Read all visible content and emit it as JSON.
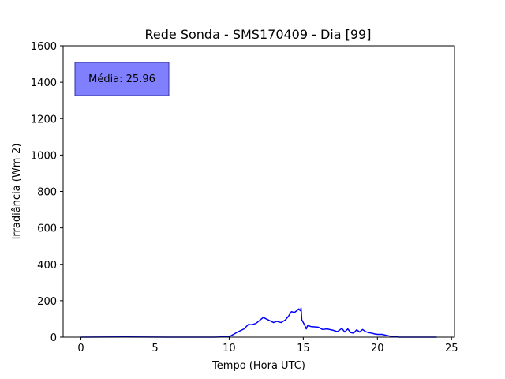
{
  "chart_data": {
    "type": "line",
    "title": "Rede Sonda - SMS170409 - Dia [99]",
    "xlabel": "Tempo (Hora UTC)",
    "ylabel": "Irradiância (Wm-2)",
    "xlim": [
      -1.2,
      25.2
    ],
    "ylim": [
      0,
      1600
    ],
    "x_ticks": [
      0,
      5,
      10,
      15,
      20,
      25
    ],
    "y_ticks": [
      0,
      200,
      400,
      600,
      800,
      1000,
      1200,
      1400,
      1600
    ],
    "grid": false,
    "annotation": {
      "text": "Média: 25.96",
      "background_color": "#8080ff",
      "border_color": "#333399"
    },
    "series": [
      {
        "color": "#0000ff",
        "x": [
          0,
          3,
          6,
          9,
          10,
          10.5,
          11,
          11.3,
          11.5,
          11.8,
          12.0,
          12.3,
          12.5,
          12.8,
          13.0,
          13.2,
          13.5,
          13.8,
          14.0,
          14.2,
          14.4,
          14.6,
          14.7,
          14.8,
          14.85,
          14.9,
          15.0,
          15.1,
          15.2,
          15.3,
          15.5,
          16.0,
          16.3,
          16.6,
          17.0,
          17.3,
          17.6,
          17.8,
          18.0,
          18.2,
          18.4,
          18.6,
          18.8,
          19.0,
          19.2,
          19.4,
          19.6,
          19.8,
          20.0,
          20.3,
          20.6,
          21.0,
          21.5,
          22,
          24
        ],
        "y": [
          0,
          1,
          0,
          0,
          2,
          25,
          45,
          70,
          68,
          75,
          88,
          108,
          100,
          88,
          80,
          87,
          80,
          95,
          115,
          140,
          135,
          148,
          155,
          145,
          160,
          95,
          80,
          65,
          45,
          65,
          58,
          55,
          42,
          45,
          38,
          30,
          48,
          28,
          45,
          25,
          22,
          40,
          28,
          42,
          30,
          25,
          22,
          18,
          15,
          15,
          10,
          3,
          0,
          0,
          0
        ]
      }
    ]
  }
}
